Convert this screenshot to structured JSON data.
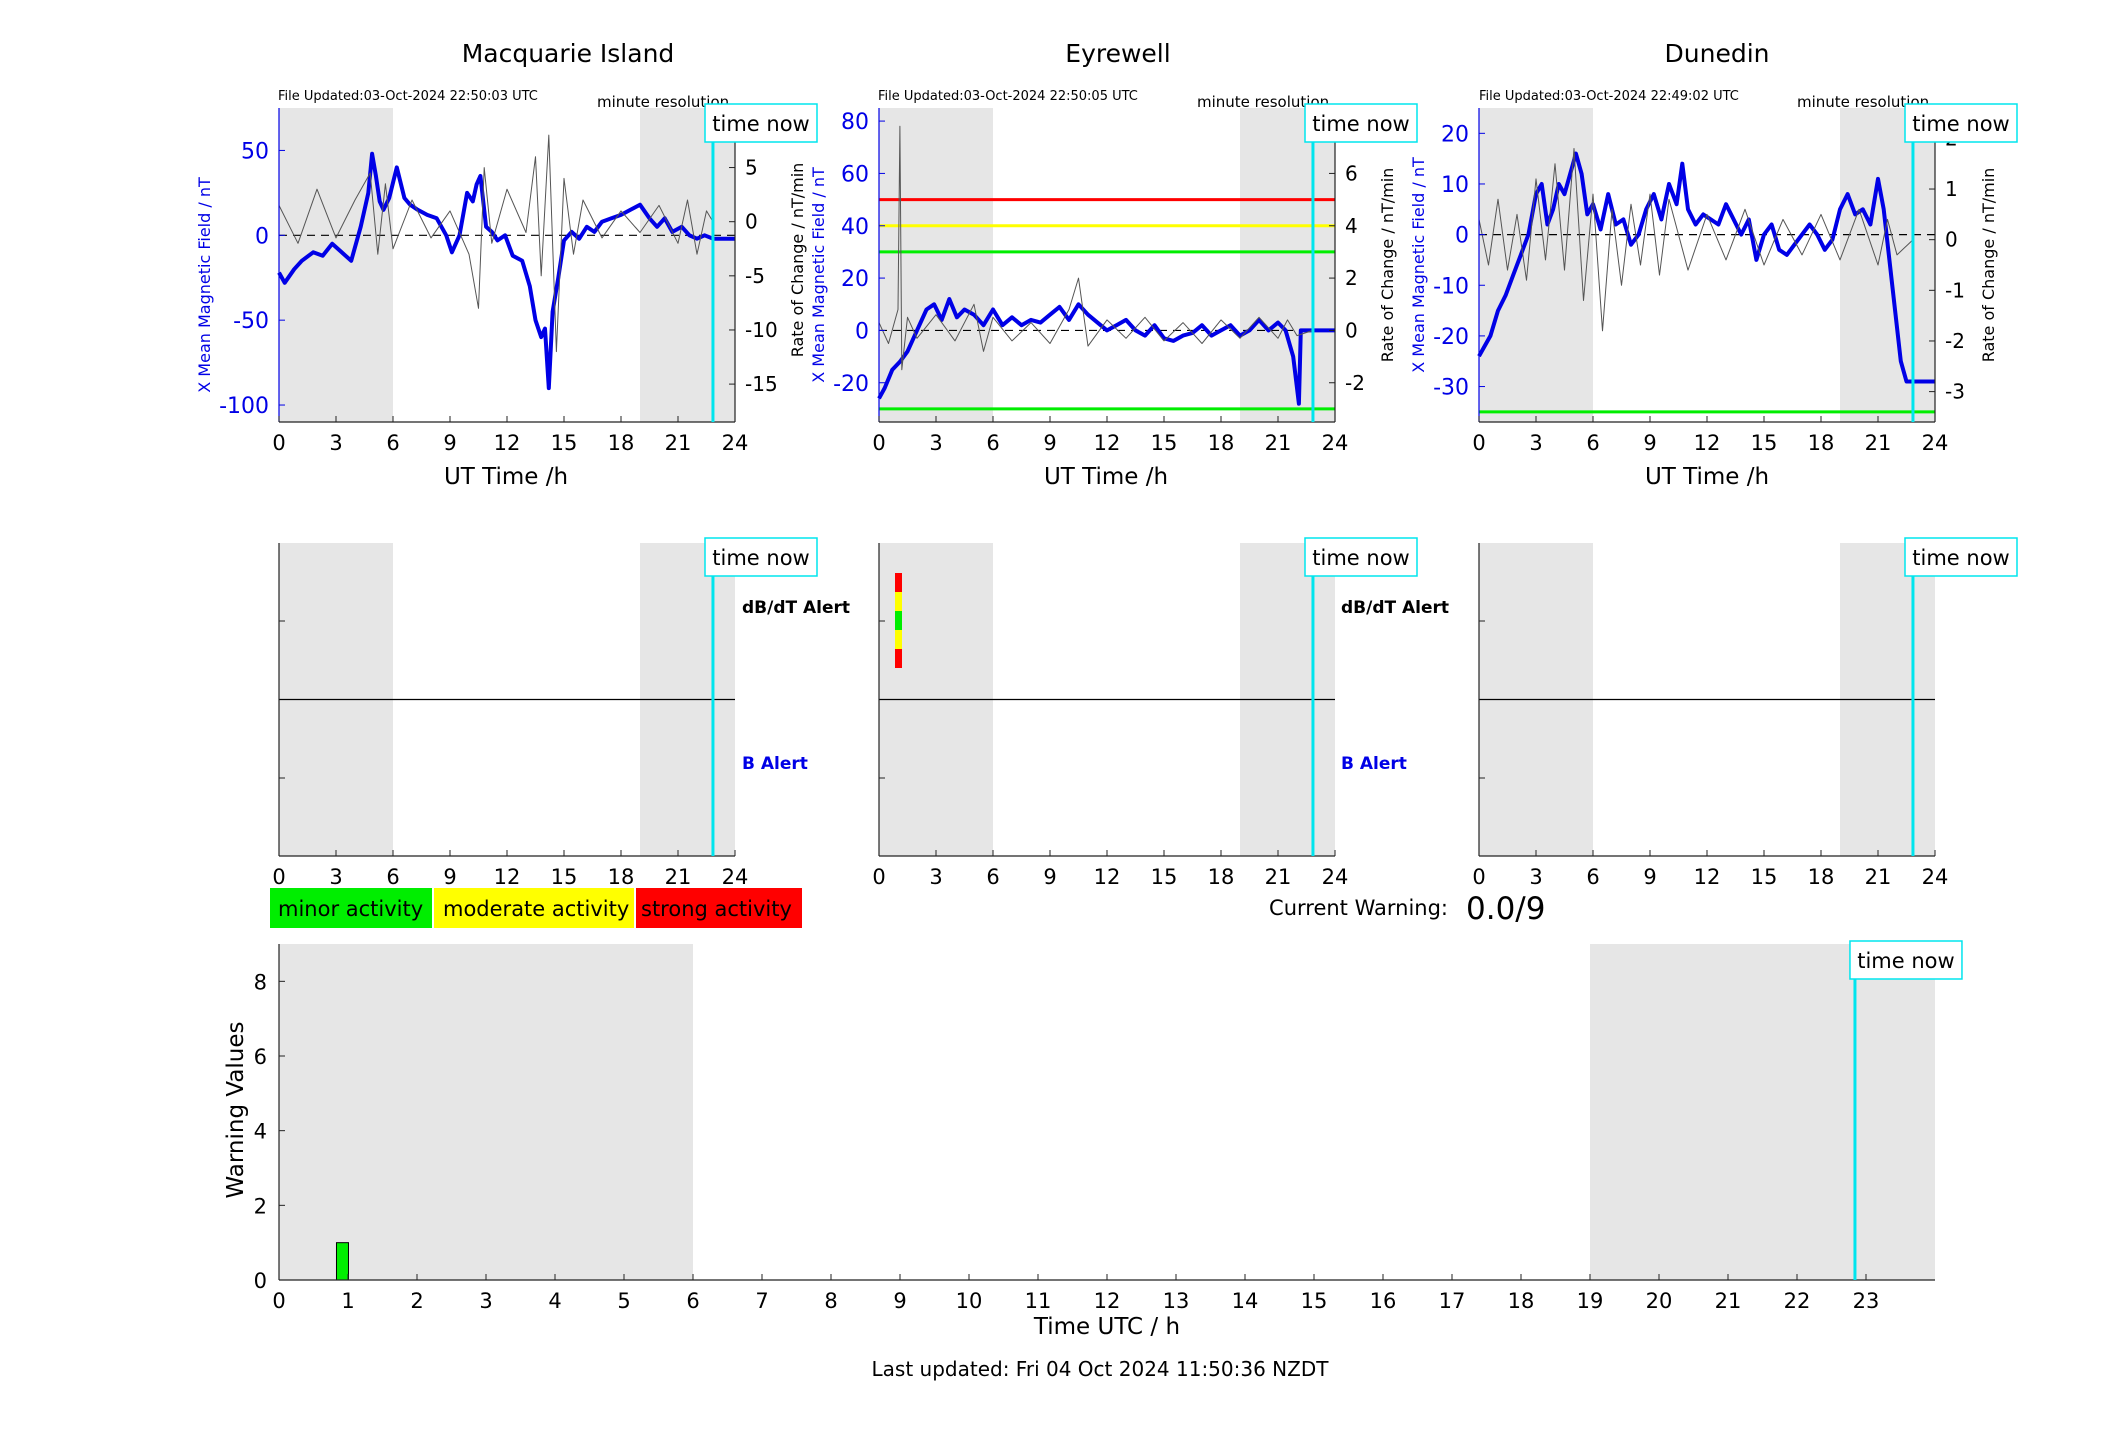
{
  "figure": {
    "footer": "Last updated: Fri 04 Oct 2024 11:50:36 NZDT",
    "time_now_label": "time now",
    "time_now_hour": 22.84,
    "current_warning_label": "Current Warning:",
    "current_warning_value": "0.0/9",
    "colors": {
      "b_field": "#0000e6",
      "rate": "#555555",
      "night_shade": "#e6e6e6",
      "time_now": "#00e5ee",
      "minor": "#00ee00",
      "moderate": "#ffff00",
      "strong": "#ff0000"
    },
    "legend": [
      {
        "label": "minor activity",
        "color": "#00ee00"
      },
      {
        "label": "moderate activity",
        "color": "#ffff00"
      },
      {
        "label": "strong activity",
        "color": "#ff0000"
      }
    ]
  },
  "chart_data": [
    {
      "id": "macquarie_field",
      "type": "line",
      "title": "Macquarie Island",
      "file_updated": "File Updated:03-Oct-2024 22:50:03 UTC",
      "resolution": "minute resolution",
      "xlabel": "UT Time /h",
      "ylabel": "X Mean Magnetic Field / nT",
      "y2label": "Rate of Change / nT/min",
      "xlim": [
        0,
        24
      ],
      "xticks": [
        0,
        3,
        6,
        9,
        12,
        15,
        18,
        21,
        24
      ],
      "ylim": [
        -110,
        75
      ],
      "yticks": [
        -100,
        -50,
        0,
        50
      ],
      "y2lim": [
        -18.5,
        10.5
      ],
      "y2ticks": [
        -15,
        -10,
        -5,
        0,
        5,
        10
      ],
      "night_shading": [
        [
          0,
          6
        ],
        [
          19,
          24
        ]
      ],
      "threshold_lines": [],
      "series": [
        {
          "role": "field",
          "x": [
            0,
            0.3,
            0.8,
            1.2,
            1.8,
            2.3,
            2.8,
            3.3,
            3.8,
            4.3,
            4.7,
            4.9,
            5.1,
            5.3,
            5.5,
            5.8,
            6.2,
            6.6,
            6.9,
            7.3,
            7.8,
            8.3,
            8.8,
            9.1,
            9.5,
            9.9,
            10.2,
            10.4,
            10.6,
            10.9,
            11.2,
            11.5,
            11.9,
            12.3,
            12.8,
            13.2,
            13.5,
            13.8,
            14.0,
            14.2,
            14.4,
            14.7,
            15.0,
            15.4,
            15.8,
            16.2,
            16.6,
            17.0,
            17.5,
            18.0,
            18.5,
            19.0,
            19.5,
            19.9,
            20.3,
            20.7,
            21.2,
            21.6,
            22.0,
            22.4,
            22.84
          ],
          "y": [
            -22,
            -28,
            -20,
            -15,
            -10,
            -12,
            -5,
            -10,
            -15,
            5,
            25,
            48,
            35,
            20,
            15,
            22,
            40,
            22,
            18,
            15,
            12,
            10,
            0,
            -10,
            0,
            25,
            20,
            30,
            35,
            5,
            2,
            -3,
            0,
            -12,
            -15,
            -30,
            -50,
            -60,
            -55,
            -90,
            -45,
            -25,
            -3,
            2,
            -2,
            5,
            2,
            8,
            10,
            12,
            15,
            18,
            10,
            5,
            10,
            2,
            5,
            0,
            -2,
            0,
            -2
          ]
        },
        {
          "role": "rate",
          "x": [
            0,
            1,
            2,
            3,
            4,
            4.8,
            5.2,
            5.6,
            6,
            7,
            8,
            9,
            10,
            10.5,
            10.8,
            11.2,
            12,
            13,
            13.5,
            13.8,
            14.2,
            14.6,
            15,
            15.5,
            16,
            17,
            18,
            19,
            20,
            21,
            21.5,
            22,
            22.5,
            22.84
          ],
          "y": [
            1.5,
            -2,
            3,
            -1.5,
            2,
            4.5,
            -3,
            3.5,
            -2.5,
            2,
            -1.5,
            1,
            -3,
            -8,
            5,
            -2,
            3,
            -1,
            6,
            -5,
            8,
            -12,
            4,
            -3,
            2,
            -1.5,
            1,
            -1,
            1.5,
            -2,
            2,
            -3,
            1,
            0
          ]
        }
      ]
    },
    {
      "id": "eyrewell_field",
      "type": "line",
      "title": "Eyrewell",
      "file_updated": "File Updated:03-Oct-2024 22:50:05 UTC",
      "resolution": "minute resolution",
      "xlabel": "UT Time /h",
      "ylabel": "X Mean Magnetic Field / nT",
      "y2label": "Rate of Change / nT/min",
      "xlim": [
        0,
        24
      ],
      "xticks": [
        0,
        3,
        6,
        9,
        12,
        15,
        18,
        21,
        24
      ],
      "ylim": [
        -35,
        85
      ],
      "yticks": [
        -20,
        0,
        20,
        40,
        60,
        80
      ],
      "y2lim": [
        -3.5,
        8.5
      ],
      "y2ticks": [
        -2,
        0,
        2,
        4,
        6,
        8
      ],
      "night_shading": [
        [
          0,
          6
        ],
        [
          19,
          24
        ]
      ],
      "threshold_lines": [
        {
          "value": 50,
          "color": "#ff0000"
        },
        {
          "value": 40,
          "color": "#ffff00"
        },
        {
          "value": 30,
          "color": "#00ee00"
        },
        {
          "value": -30,
          "color": "#00ee00"
        }
      ],
      "series": [
        {
          "role": "field",
          "x": [
            0,
            0.3,
            0.7,
            1.1,
            1.5,
            2.0,
            2.5,
            2.9,
            3.3,
            3.7,
            4.1,
            4.5,
            5.0,
            5.5,
            6.0,
            6.5,
            7.0,
            7.5,
            8.0,
            8.5,
            9.0,
            9.5,
            10.0,
            10.5,
            11.0,
            11.5,
            12.0,
            12.5,
            13.0,
            13.5,
            14.0,
            14.5,
            15.0,
            15.5,
            16.0,
            16.5,
            17.0,
            17.5,
            18.0,
            18.5,
            19.0,
            19.5,
            20.0,
            20.5,
            21.0,
            21.4,
            21.8,
            22.1,
            22.2,
            22.84
          ],
          "y": [
            -26,
            -22,
            -15,
            -12,
            -8,
            0,
            8,
            10,
            4,
            12,
            5,
            8,
            6,
            2,
            8,
            2,
            5,
            2,
            4,
            3,
            6,
            9,
            4,
            10,
            6,
            3,
            0,
            2,
            4,
            0,
            -2,
            2,
            -3,
            -4,
            -2,
            -1,
            2,
            -2,
            0,
            2,
            -2,
            0,
            4,
            0,
            3,
            0,
            -10,
            -28,
            0,
            0
          ]
        },
        {
          "role": "rate",
          "x": [
            0,
            0.5,
            1,
            1.1,
            1.2,
            1.5,
            2,
            3,
            4,
            5,
            5.5,
            6,
            7,
            8,
            9,
            10,
            10.5,
            11,
            12,
            13,
            14,
            15,
            16,
            17,
            18,
            19,
            20,
            21,
            21.5,
            22,
            22.84
          ],
          "y": [
            0.3,
            -0.5,
            0.8,
            7.8,
            -1.5,
            0.5,
            -0.3,
            0.6,
            -0.4,
            1.0,
            -0.8,
            0.5,
            -0.4,
            0.3,
            -0.5,
            0.8,
            2.0,
            -0.6,
            0.4,
            -0.3,
            0.5,
            -0.4,
            0.3,
            -0.5,
            0.4,
            -0.3,
            0.5,
            -0.3,
            0.4,
            -0.2,
            0
          ]
        }
      ]
    },
    {
      "id": "dunedin_field",
      "type": "line",
      "title": "Dunedin",
      "file_updated": "File Updated:03-Oct-2024 22:49:02 UTC",
      "resolution": "minute resolution",
      "xlabel": "UT Time /h",
      "ylabel": "X Mean Magnetic Field / nT",
      "y2label": "Rate of Change / nT/min",
      "xlim": [
        0,
        24
      ],
      "xticks": [
        0,
        3,
        6,
        9,
        12,
        15,
        18,
        21,
        24
      ],
      "ylim": [
        -37,
        25
      ],
      "yticks": [
        -30,
        -20,
        -10,
        0,
        10,
        20
      ],
      "y2lim": [
        -3.6,
        2.6
      ],
      "y2ticks": [
        -3,
        -2,
        -1,
        0,
        1,
        2
      ],
      "night_shading": [
        [
          0,
          6
        ],
        [
          19,
          24
        ]
      ],
      "threshold_lines": [
        {
          "value": -35,
          "color": "#00ee00"
        }
      ],
      "series": [
        {
          "role": "field",
          "x": [
            0,
            0.3,
            0.6,
            1.0,
            1.4,
            1.8,
            2.2,
            2.6,
            3.0,
            3.3,
            3.6,
            3.9,
            4.2,
            4.5,
            4.8,
            5.1,
            5.4,
            5.7,
            6.0,
            6.4,
            6.8,
            7.2,
            7.6,
            8.0,
            8.4,
            8.8,
            9.2,
            9.6,
            10.0,
            10.4,
            10.7,
            11.0,
            11.4,
            11.8,
            12.2,
            12.6,
            13.0,
            13.4,
            13.8,
            14.2,
            14.6,
            15.0,
            15.4,
            15.8,
            16.2,
            16.6,
            17.0,
            17.4,
            17.8,
            18.2,
            18.6,
            19.0,
            19.4,
            19.8,
            20.2,
            20.6,
            21.0,
            21.3,
            21.6,
            21.9,
            22.2,
            22.5,
            22.84
          ],
          "y": [
            -24,
            -22,
            -20,
            -15,
            -12,
            -8,
            -4,
            0,
            8,
            10,
            2,
            5,
            10,
            8,
            12,
            16,
            12,
            4,
            6,
            1,
            8,
            2,
            3,
            -2,
            0,
            5,
            8,
            3,
            10,
            6,
            14,
            5,
            2,
            4,
            3,
            2,
            6,
            3,
            0,
            3,
            -5,
            0,
            2,
            -3,
            -4,
            -2,
            0,
            2,
            0,
            -3,
            -1,
            5,
            8,
            4,
            5,
            2,
            11,
            5,
            -5,
            -15,
            -25,
            -29,
            -29
          ]
        },
        {
          "role": "rate",
          "x": [
            0,
            0.5,
            1,
            1.5,
            2,
            2.5,
            3,
            3.5,
            4,
            4.5,
            5,
            5.5,
            6,
            6.5,
            7,
            7.5,
            8,
            8.5,
            9,
            9.5,
            10,
            11,
            12,
            13,
            14,
            15,
            16,
            17,
            18,
            19,
            20,
            21,
            21.5,
            22,
            22.84
          ],
          "y": [
            0.4,
            -0.5,
            0.8,
            -0.6,
            0.5,
            -0.8,
            1.2,
            -0.4,
            1.5,
            -0.6,
            1.8,
            -1.2,
            0.9,
            -1.8,
            0.6,
            -0.9,
            0.7,
            -0.5,
            0.9,
            -0.7,
            0.8,
            -0.6,
            0.5,
            -0.4,
            0.6,
            -0.5,
            0.4,
            -0.3,
            0.5,
            -0.4,
            0.6,
            -0.5,
            0.4,
            -0.3,
            0
          ]
        }
      ]
    },
    {
      "id": "macquarie_alert",
      "type": "heatmap",
      "xlim": [
        0,
        24
      ],
      "xticks": [
        0,
        3,
        6,
        9,
        12,
        15,
        18,
        21,
        24
      ],
      "night_shading": [
        [
          0,
          6
        ],
        [
          19,
          24
        ]
      ],
      "upper_label": "dB/dT Alert",
      "lower_label": "B Alert",
      "alert_bars": []
    },
    {
      "id": "eyrewell_alert",
      "type": "heatmap",
      "xlim": [
        0,
        24
      ],
      "xticks": [
        0,
        3,
        6,
        9,
        12,
        15,
        18,
        21,
        24
      ],
      "night_shading": [
        [
          0,
          6
        ],
        [
          19,
          24
        ]
      ],
      "upper_label": "dB/dT Alert",
      "lower_label": "B Alert",
      "alert_bars": [
        {
          "hour": 1.0,
          "segments": [
            "#ff0000",
            "#ffff00",
            "#00ee00",
            "#ffff00",
            "#ff0000"
          ]
        }
      ]
    },
    {
      "id": "dunedin_alert",
      "type": "heatmap",
      "xlim": [
        0,
        24
      ],
      "xticks": [
        0,
        3,
        6,
        9,
        12,
        15,
        18,
        21,
        24
      ],
      "night_shading": [
        [
          0,
          6
        ],
        [
          19,
          24
        ]
      ],
      "upper_label": "",
      "lower_label": "",
      "alert_bars": []
    },
    {
      "id": "warning_values",
      "type": "bar",
      "xlabel": "Time UTC / h",
      "ylabel": "Warning Values",
      "xlim": [
        0,
        24
      ],
      "xticks": [
        0,
        1,
        2,
        3,
        4,
        5,
        6,
        7,
        8,
        9,
        10,
        11,
        12,
        13,
        14,
        15,
        16,
        17,
        18,
        19,
        20,
        21,
        22,
        23
      ],
      "ylim": [
        0,
        9
      ],
      "yticks": [
        0,
        2,
        4,
        6,
        8
      ],
      "night_shading": [
        [
          0,
          6
        ],
        [
          19,
          24
        ]
      ],
      "bars": [
        {
          "x": 0.92,
          "y": 1,
          "color": "#00ee00"
        }
      ]
    }
  ]
}
